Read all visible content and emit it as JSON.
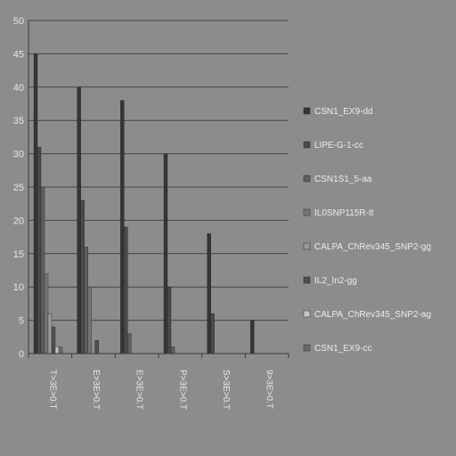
{
  "chart_data": {
    "type": "bar",
    "title": "",
    "xlabel": "",
    "ylabel": "",
    "ylim": [
      0,
      50
    ],
    "yticks": [
      0,
      5,
      10,
      15,
      20,
      25,
      30,
      35,
      40,
      45,
      50
    ],
    "grid": true,
    "legend_position": "right",
    "categories": [
      "T>3E>0.T",
      "E>3E>0.T",
      "E>3E>0.T",
      "P>3E>0.T",
      "S>3E>0.T",
      "9>3E>0.T"
    ],
    "series": [
      {
        "name": "CSN1_EX9-dd",
        "color": "#353535",
        "values": [
          45,
          40,
          38,
          30,
          18,
          5
        ]
      },
      {
        "name": "LIPE-G-1-cc",
        "color": "#4a4a4a",
        "values": [
          31,
          23,
          19,
          10,
          6,
          0
        ]
      },
      {
        "name": "CSN1S1_5-aa",
        "color": "#5e5e5e",
        "values": [
          25,
          16,
          3,
          1,
          0,
          0
        ]
      },
      {
        "name": "IL0SNP115R-tt",
        "color": "#757575",
        "values": [
          12,
          10,
          0,
          0,
          0,
          0
        ]
      },
      {
        "name": "CALPA_ChRev345_SNP2-gg",
        "color": "#9a9a9a",
        "values": [
          6,
          0,
          0,
          0,
          0,
          0
        ]
      },
      {
        "name": "IL2_In2-gg",
        "color": "#4f4f4f",
        "values": [
          4,
          2,
          0,
          0,
          0,
          0
        ]
      },
      {
        "name": "CALPA_ChRev345_SNP2-ag",
        "color": "#c4c4c4",
        "values": [
          1,
          0,
          0,
          0,
          0,
          0
        ]
      },
      {
        "name": "CSN1_EX9-cc",
        "color": "#6a6a6a",
        "values": [
          1,
          0,
          0,
          0,
          0,
          0
        ]
      }
    ]
  }
}
